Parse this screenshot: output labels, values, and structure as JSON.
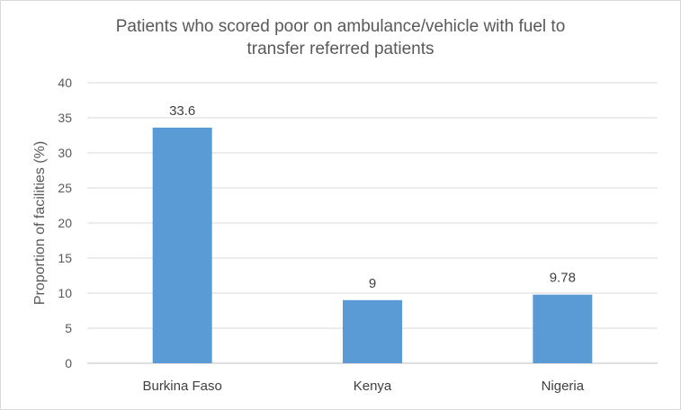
{
  "chart_data": {
    "type": "bar",
    "title_line1": "Patients who scored poor on ambulance/vehicle with fuel to",
    "title_line2": "transfer referred patients",
    "xlabel": "",
    "ylabel": "Proportion of facilities (%)",
    "categories": [
      "Burkina Faso",
      "Kenya",
      "Nigeria"
    ],
    "values": [
      33.6,
      9,
      9.78
    ],
    "data_labels": [
      "33.6",
      "9",
      "9.78"
    ],
    "ylim": [
      0,
      40
    ],
    "yticks": [
      0,
      5,
      10,
      15,
      20,
      25,
      30,
      35,
      40
    ],
    "bar_color": "#5b9bd5",
    "grid": true,
    "legend": "none"
  }
}
